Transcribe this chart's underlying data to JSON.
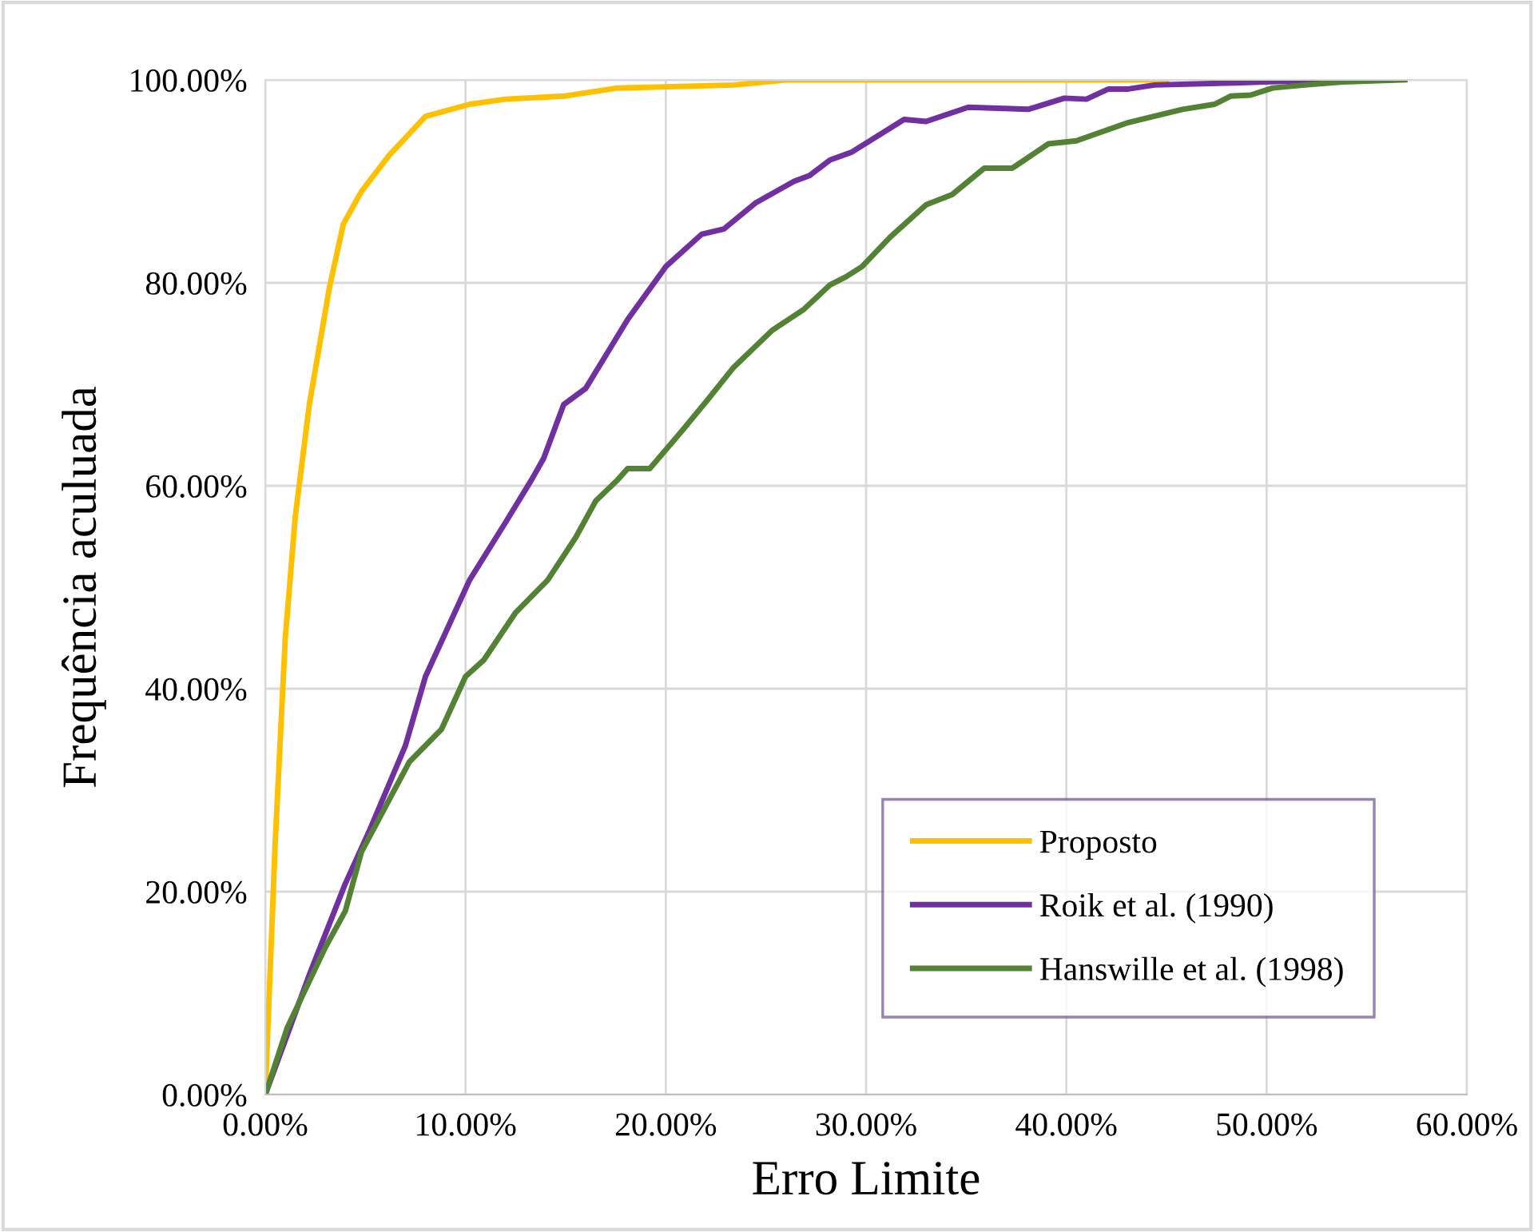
{
  "chart_data": {
    "type": "line",
    "xlabel": "Erro Limite",
    "ylabel": "Frequência aculuada",
    "xlim": [
      0,
      60
    ],
    "ylim": [
      0,
      100
    ],
    "xticks": [
      {
        "value": 0,
        "label": "0.00%"
      },
      {
        "value": 10,
        "label": "10.00%"
      },
      {
        "value": 20,
        "label": "20.00%"
      },
      {
        "value": 30,
        "label": "30.00%"
      },
      {
        "value": 40,
        "label": "40.00%"
      },
      {
        "value": 50,
        "label": "50.00%"
      },
      {
        "value": 60,
        "label": "60.00%"
      }
    ],
    "yticks": [
      {
        "value": 0,
        "label": "0.00%"
      },
      {
        "value": 20,
        "label": "20.00%"
      },
      {
        "value": 40,
        "label": "40.00%"
      },
      {
        "value": 60,
        "label": "60.00%"
      },
      {
        "value": 80,
        "label": "80.00%"
      },
      {
        "value": 100,
        "label": "100.00%"
      }
    ],
    "grid": true,
    "legend": "bottom right",
    "marker": "none",
    "line_style": "solid",
    "series": [
      {
        "name": "Proposto",
        "color": "#ffc000",
        "x": [
          0,
          0.5,
          1,
          1.5,
          2.2,
          3.2,
          3.9,
          4.8,
          6.2,
          8.0,
          10.2,
          12.0,
          14.9,
          17.6,
          23.4,
          26.0,
          45.0
        ],
        "values": [
          0,
          25,
          45,
          57,
          68,
          79.5,
          85.8,
          89,
          92.6,
          96.4,
          97.6,
          98.1,
          98.4,
          99.2,
          99.5,
          100,
          100
        ]
      },
      {
        "name": "Roik et al. (1990)",
        "color": "#7030a0",
        "x": [
          0,
          2.2,
          4.0,
          5.2,
          7.0,
          8.0,
          10.2,
          12.0,
          13.3,
          13.9,
          14.9,
          16.0,
          18.1,
          20.0,
          21.8,
          22.9,
          24.5,
          26.4,
          27.2,
          28.2,
          29.3,
          31.9,
          33.0,
          35.1,
          38.1,
          39.9,
          41.0,
          42.1,
          43.1,
          44.4,
          48.4,
          53.2
        ],
        "values": [
          0,
          11.8,
          20.8,
          26,
          34.4,
          41.2,
          50.7,
          56.4,
          60.6,
          62.7,
          68,
          69.6,
          76.4,
          81.6,
          84.8,
          85.3,
          87.9,
          90,
          90.6,
          92.1,
          92.9,
          96.1,
          95.9,
          97.3,
          97.1,
          98.2,
          98.1,
          99.1,
          99.1,
          99.5,
          99.7,
          100
        ]
      },
      {
        "name": "Hanswille et al. (1998)",
        "color": "#548235",
        "x": [
          0,
          1.1,
          3.0,
          4.0,
          4.8,
          6.2,
          7.2,
          8.8,
          10.0,
          10.9,
          12.5,
          14.1,
          15.5,
          16.5,
          17.6,
          18.1,
          19.2,
          20.8,
          22.1,
          23.4,
          25.3,
          26.9,
          28.2,
          29.0,
          29.8,
          31.2,
          33.0,
          34.3,
          35.9,
          37.3,
          39.1,
          40.5,
          43.1,
          45.8,
          47.4,
          48.2,
          49.2,
          50.3,
          51.9,
          53.8,
          56.9
        ],
        "values": [
          0,
          6.6,
          14.5,
          18.1,
          23.9,
          29.1,
          32.8,
          36,
          41.2,
          42.8,
          47.5,
          50.7,
          54.9,
          58.5,
          60.6,
          61.7,
          61.7,
          65.4,
          68.5,
          71.7,
          75.3,
          77.4,
          79.8,
          80.6,
          81.6,
          84.5,
          87.7,
          88.7,
          91.3,
          91.3,
          93.7,
          94,
          95.8,
          97.1,
          97.6,
          98.4,
          98.5,
          99.2,
          99.5,
          99.8,
          100
        ]
      }
    ]
  }
}
